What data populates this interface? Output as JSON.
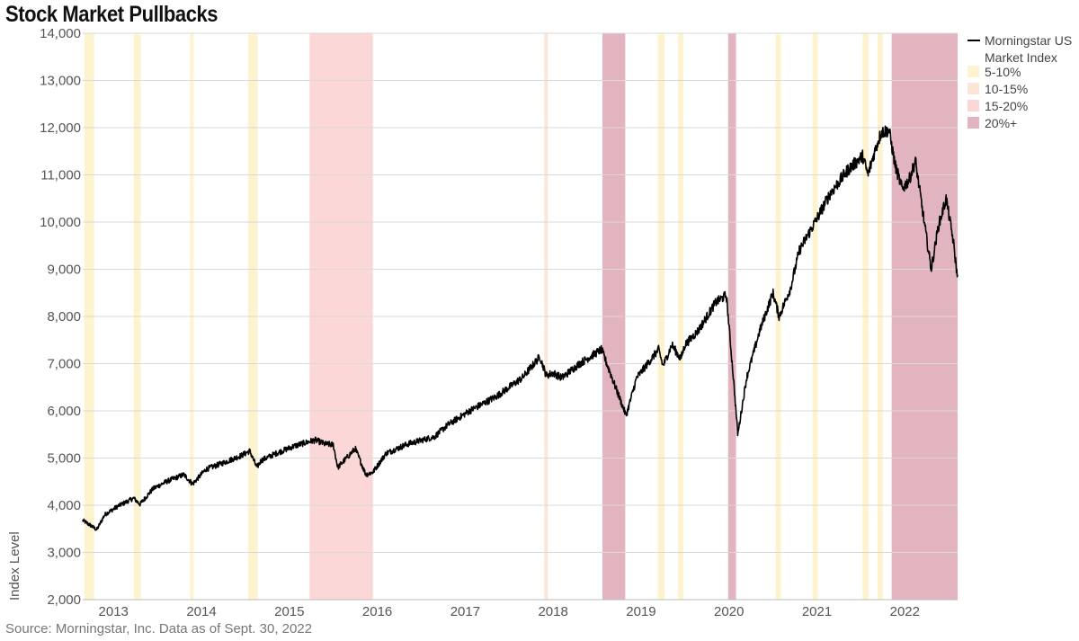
{
  "title": "Stock Market Pullbacks",
  "source": "Source: Morningstar, Inc. Data as of Sept. 30, 2022",
  "colors": {
    "5-10%": "#fdf3cf",
    "10-15%": "#fbe5d6",
    "15-20%": "#fcd7d8",
    "20%+": "#e2b4c0",
    "line": "#000000",
    "grid": "#d9d9d9"
  },
  "chart_data": {
    "type": "line",
    "title": "Stock Market Pullbacks",
    "ylabel": "Index Level",
    "xlabel": "",
    "xlim": [
      2012.8,
      2022.75
    ],
    "ylim": [
      2000,
      14000
    ],
    "yticks": [
      "2,000",
      "3,000",
      "4,000",
      "5,000",
      "6,000",
      "7,000",
      "8,000",
      "9,000",
      "10,000",
      "11,000",
      "12,000",
      "13,000",
      "14,000"
    ],
    "xticks": [
      "2013",
      "2014",
      "2015",
      "2016",
      "2017",
      "2018",
      "2019",
      "2020",
      "2021",
      "2022"
    ],
    "legend": [
      "Morningstar US Market Index",
      "5-10%",
      "10-15%",
      "15-20%",
      "20%+"
    ],
    "legend_line_label": [
      "Morningstar US",
      "Market Index"
    ],
    "legend_placement": "top-right",
    "series": [
      {
        "name": "Morningstar US Market Index",
        "x": [
          2012.8,
          2012.9,
          2012.96,
          2013.05,
          2013.2,
          2013.38,
          2013.45,
          2013.6,
          2013.75,
          2013.95,
          2014.05,
          2014.2,
          2014.4,
          2014.6,
          2014.7,
          2014.78,
          2014.83,
          2015.0,
          2015.2,
          2015.38,
          2015.45,
          2015.55,
          2015.65,
          2015.7,
          2015.8,
          2015.9,
          2016.02,
          2016.1,
          2016.25,
          2016.5,
          2016.8,
          2016.95,
          2017.2,
          2017.5,
          2017.8,
          2018.0,
          2018.07,
          2018.15,
          2018.25,
          2018.45,
          2018.7,
          2018.8,
          2018.9,
          2018.98,
          2019.1,
          2019.35,
          2019.4,
          2019.5,
          2019.6,
          2019.65,
          2019.8,
          2020.0,
          2020.12,
          2020.2,
          2020.25,
          2020.35,
          2020.5,
          2020.65,
          2020.72,
          2020.85,
          2020.95,
          2021.1,
          2021.3,
          2021.5,
          2021.67,
          2021.73,
          2021.8,
          2021.88,
          2021.97,
          2022.04,
          2022.12,
          2022.2,
          2022.27,
          2022.37,
          2022.45,
          2022.53,
          2022.62,
          2022.7,
          2022.75
        ],
        "values": [
          3680,
          3560,
          3480,
          3800,
          3980,
          4150,
          4020,
          4350,
          4500,
          4650,
          4450,
          4760,
          4900,
          5050,
          5150,
          4800,
          4950,
          5100,
          5250,
          5350,
          5380,
          5300,
          5280,
          4800,
          5000,
          5200,
          4650,
          4700,
          5100,
          5300,
          5450,
          5700,
          6000,
          6300,
          6700,
          7150,
          6750,
          6800,
          6700,
          7000,
          7300,
          6800,
          6300,
          5900,
          6700,
          7300,
          6950,
          7400,
          7100,
          7400,
          7700,
          8300,
          8450,
          6700,
          5500,
          6700,
          7700,
          8500,
          8000,
          8600,
          9400,
          9900,
          10600,
          11100,
          11400,
          11000,
          11450,
          11900,
          11950,
          11200,
          10700,
          10900,
          11300,
          10000,
          9000,
          9900,
          10500,
          9600,
          8800
        ]
      }
    ],
    "pullbacks": [
      {
        "category": "5-10%",
        "start": 2012.82,
        "end": 2012.93
      },
      {
        "category": "5-10%",
        "start": 2013.38,
        "end": 2013.46
      },
      {
        "category": "5-10%",
        "start": 2014.02,
        "end": 2014.06
      },
      {
        "category": "5-10%",
        "start": 2014.68,
        "end": 2014.79
      },
      {
        "category": "15-20%",
        "start": 2015.38,
        "end": 2016.1
      },
      {
        "category": "10-15%",
        "start": 2018.05,
        "end": 2018.09
      },
      {
        "category": "20%+",
        "start": 2018.71,
        "end": 2018.97
      },
      {
        "category": "5-10%",
        "start": 2019.34,
        "end": 2019.42
      },
      {
        "category": "5-10%",
        "start": 2019.57,
        "end": 2019.63
      },
      {
        "category": "20%+",
        "start": 2020.14,
        "end": 2020.23
      },
      {
        "category": "5-10%",
        "start": 2020.68,
        "end": 2020.74
      },
      {
        "category": "5-10%",
        "start": 2021.1,
        "end": 2021.16
      },
      {
        "category": "5-10%",
        "start": 2021.67,
        "end": 2021.74
      },
      {
        "category": "5-10%",
        "start": 2021.84,
        "end": 2021.9
      },
      {
        "category": "20%+",
        "start": 2022.0,
        "end": 2022.75
      }
    ]
  }
}
